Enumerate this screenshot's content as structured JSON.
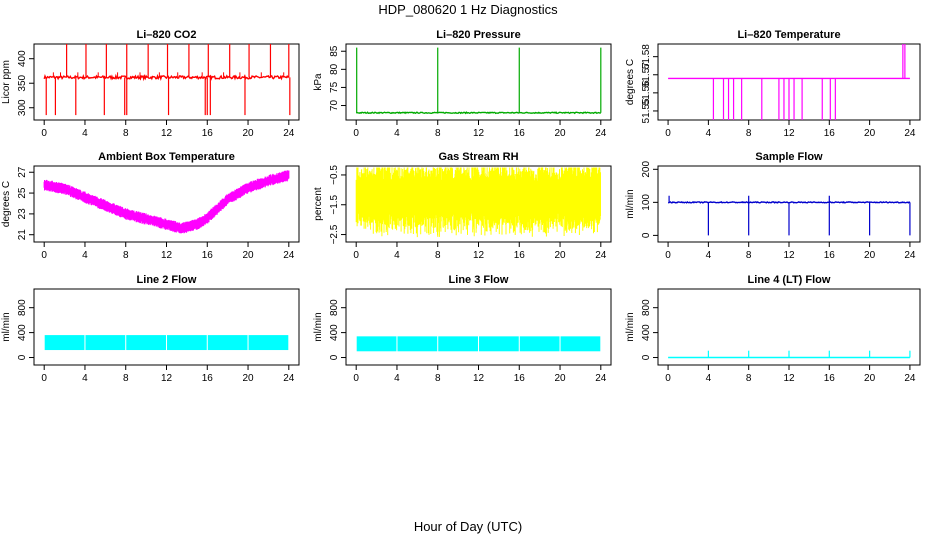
{
  "page": {
    "title": "HDP_080620  1 Hz Diagnostics",
    "xlabel": "Hour of Day (UTC)"
  },
  "chart_data": [
    {
      "type": "line",
      "title": "Li–820 CO2",
      "ylabel": "Licor ppm",
      "color": "#ff0000",
      "x_ticks": [
        "0",
        "4",
        "8",
        "12",
        "16",
        "20",
        "24"
      ],
      "y_ticks": [
        "300",
        "350",
        "400"
      ],
      "xlim": [
        -1,
        25
      ],
      "ylim": [
        275,
        430
      ],
      "baseline": 362,
      "noise": 3,
      "spikes_up": [
        2.2,
        4.1,
        6.1,
        8.1,
        10.2,
        12.1,
        14.2,
        16.1,
        18.2,
        20.1,
        22.2,
        24.0
      ],
      "spike_up_value": 430,
      "spikes_down": [
        0.2,
        1.1,
        3.1,
        5.9,
        7.9,
        8.1,
        12.2,
        15.8,
        16.0,
        16.3,
        19.7,
        24.1
      ],
      "spike_down_value": 285,
      "small_bumps": [
        0.9,
        1.6,
        3.3,
        5.3,
        7.2,
        9.4,
        11.3,
        13.1,
        15.5,
        17.6,
        19.2,
        21.3,
        23.5
      ]
    },
    {
      "type": "line",
      "title": "Li–820 Pressure",
      "ylabel": "kPa",
      "color": "#00aa00",
      "x_ticks": [
        "0",
        "4",
        "8",
        "12",
        "16",
        "20",
        "24"
      ],
      "y_ticks": [
        "70",
        "75",
        "80",
        "85"
      ],
      "xlim": [
        -1,
        25
      ],
      "ylim": [
        66,
        87
      ],
      "baseline": 68,
      "noise": 0.15,
      "spikes_up": [
        0.05,
        8.0,
        16.0,
        24.0
      ],
      "spike_up_value": 86,
      "spikes_down": [],
      "spike_down_value": 68,
      "small_bumps": []
    },
    {
      "type": "line",
      "title": "Li–820 Temperature",
      "ylabel": "degrees C",
      "color": "#ff00ff",
      "x_ticks": [
        "0",
        "4",
        "8",
        "12",
        "16",
        "20",
        "24"
      ],
      "y_ticks": [
        "51.55",
        "51.56",
        "51.57",
        "51.58"
      ],
      "xlim": [
        -1,
        25
      ],
      "ylim": [
        51.545,
        51.587
      ],
      "baseline": 51.568,
      "noise": 0,
      "spikes_up": [
        23.3,
        23.5
      ],
      "spike_up_value": 51.587,
      "spikes_down": [
        4.5,
        5.5,
        6.0,
        6.5,
        7.3,
        9.3,
        11.0,
        11.5,
        12.0,
        12.5,
        13.3,
        15.3,
        16.1,
        16.6
      ],
      "spike_down_value": 51.545,
      "small_bumps": []
    },
    {
      "type": "line",
      "title": "Ambient Box Temperature",
      "ylabel": "degrees C",
      "color": "#ff00ff",
      "x_ticks": [
        "0",
        "4",
        "8",
        "12",
        "16",
        "20",
        "24"
      ],
      "y_ticks": [
        "21",
        "23",
        "25",
        "27"
      ],
      "xlim": [
        -1,
        25
      ],
      "ylim": [
        20.3,
        27.6
      ],
      "curve_x": [
        0,
        2,
        4,
        6,
        8,
        10,
        12,
        13.5,
        15,
        16,
        17,
        18,
        20,
        22,
        24
      ],
      "curve_y": [
        25.8,
        25.4,
        24.6,
        23.8,
        23.0,
        22.5,
        22.0,
        21.6,
        22.0,
        22.6,
        23.5,
        24.4,
        25.5,
        26.2,
        26.7
      ],
      "band": 0.55,
      "noise": 0,
      "spikes_up": [],
      "spikes_down": [],
      "small_bumps": []
    },
    {
      "type": "line",
      "title": "Gas Stream RH",
      "ylabel": "percent",
      "color": "#ffff00",
      "x_ticks": [
        "0",
        "4",
        "8",
        "12",
        "16",
        "20",
        "24"
      ],
      "y_ticks": [
        "−2.5",
        "−1.5",
        "−0.5"
      ],
      "xlim": [
        -1,
        25
      ],
      "ylim": [
        -2.75,
        -0.2
      ],
      "baseline": -1.25,
      "band": 0.6,
      "noise": 0.55,
      "spikes_up": [],
      "spikes_down": [],
      "small_bumps": []
    },
    {
      "type": "line",
      "title": "Sample Flow",
      "ylabel": "ml/min",
      "color": "#0000cc",
      "x_ticks": [
        "0",
        "4",
        "8",
        "12",
        "16",
        "20",
        "24"
      ],
      "y_ticks": [
        "0",
        "100",
        "200"
      ],
      "xlim": [
        -1,
        25
      ],
      "ylim": [
        -20,
        210
      ],
      "baseline": 100,
      "noise": 1.5,
      "spikes_up": [
        0.1,
        8.0,
        16.0
      ],
      "spike_up_value": 120,
      "spikes_down": [
        4.0,
        8.0,
        12.0,
        16.0,
        20.0,
        24.0
      ],
      "spike_down_value": 0,
      "small_bumps": []
    },
    {
      "type": "area",
      "title": "Line 2 Flow",
      "ylabel": "ml/min",
      "color": "#00ffff",
      "x_ticks": [
        "0",
        "4",
        "8",
        "12",
        "16",
        "20",
        "24"
      ],
      "y_ticks": [
        "0",
        "400",
        "800"
      ],
      "xlim": [
        -1,
        25
      ],
      "ylim": [
        -120,
        1100
      ],
      "band_low": 120,
      "band_high": 360,
      "gaps": [
        4,
        8,
        12,
        16,
        20,
        24
      ]
    },
    {
      "type": "area",
      "title": "Line 3 Flow",
      "ylabel": "ml/min",
      "color": "#00ffff",
      "x_ticks": [
        "0",
        "4",
        "8",
        "12",
        "16",
        "20",
        "24"
      ],
      "y_ticks": [
        "0",
        "400",
        "800"
      ],
      "xlim": [
        -1,
        25
      ],
      "ylim": [
        -120,
        1100
      ],
      "band_low": 100,
      "band_high": 340,
      "gaps": [
        4,
        8,
        12,
        16,
        20,
        24
      ]
    },
    {
      "type": "line",
      "title": "Line 4 (LT) Flow",
      "ylabel": "ml/min",
      "color": "#00ffff",
      "x_ticks": [
        "0",
        "4",
        "8",
        "12",
        "16",
        "20",
        "24"
      ],
      "y_ticks": [
        "0",
        "400",
        "800"
      ],
      "xlim": [
        -1,
        25
      ],
      "ylim": [
        -120,
        1100
      ],
      "baseline": 0,
      "noise": 0,
      "spikes_up": [
        4.0,
        8.0,
        12.0,
        16.0,
        20.0,
        24.0
      ],
      "spike_up_value": 110,
      "spikes_down": [],
      "spike_down_value": 0,
      "small_bumps": []
    }
  ]
}
